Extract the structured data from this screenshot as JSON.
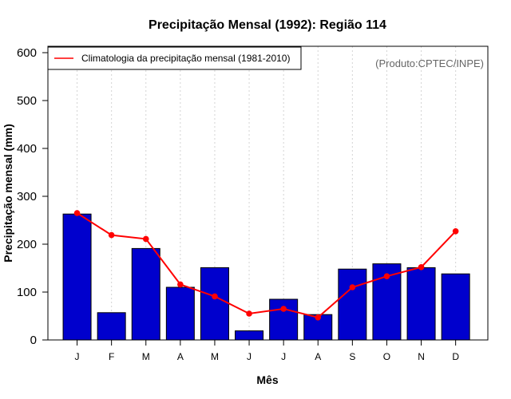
{
  "chart_data": {
    "type": "bar",
    "title": "Precipitação Mensal (1992): Região 114",
    "xlabel": "Mês",
    "ylabel": "Precipitação mensal (mm)",
    "ylim": [
      0,
      600
    ],
    "yticks": [
      0,
      100,
      200,
      300,
      400,
      500,
      600
    ],
    "grid": "vertical dotted",
    "categories": [
      "J",
      "F",
      "M",
      "A",
      "M",
      "J",
      "J",
      "A",
      "S",
      "O",
      "N",
      "D"
    ],
    "series": [
      {
        "name": "Precipitação mensal (1992)",
        "type": "bar",
        "color": "#0000cd",
        "values": [
          263,
          57,
          191,
          110,
          151,
          19,
          85,
          53,
          148,
          159,
          151,
          138
        ]
      },
      {
        "name": "Climatologia da precipitação mensal (1981-2010)",
        "type": "line",
        "color": "#ff0000",
        "values": [
          265,
          219,
          211,
          116,
          91,
          55,
          65,
          47,
          110,
          133,
          152,
          227
        ]
      }
    ],
    "legend": {
      "position": "top-left",
      "entries": [
        "Climatologia da precipitação mensal (1981-2010)"
      ]
    },
    "annotation": "(Produto:CPTEC/INPE)"
  }
}
